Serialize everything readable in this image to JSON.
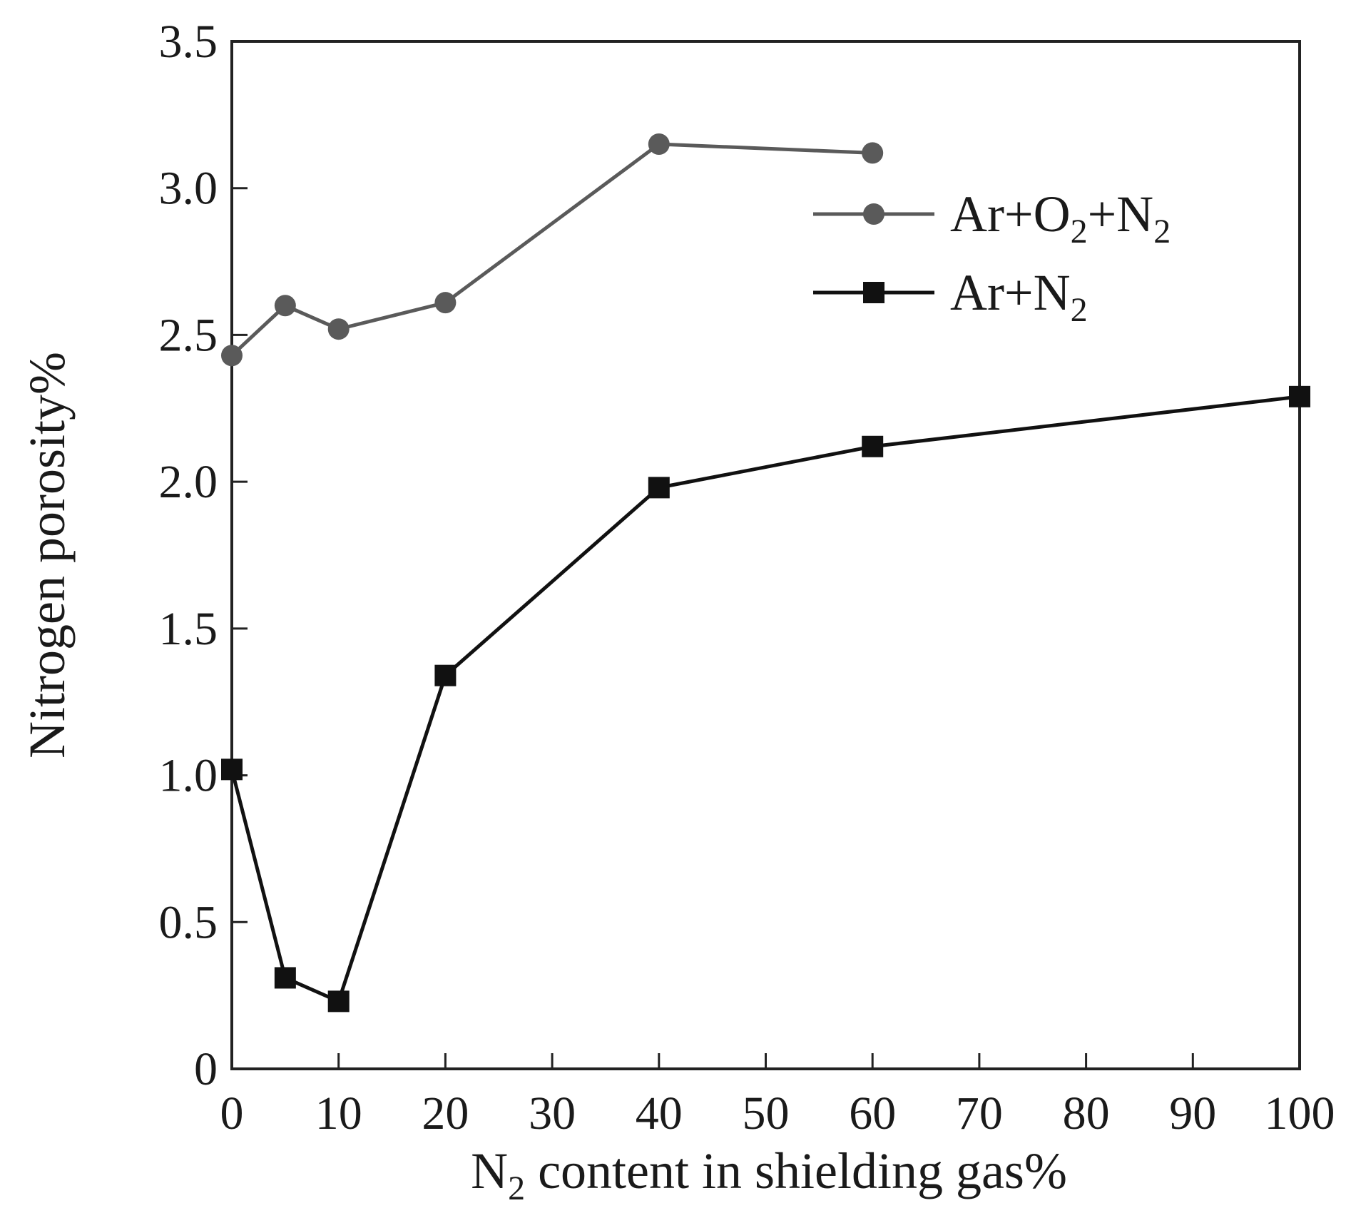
{
  "chart_data": {
    "type": "line",
    "xlabel": {
      "main": "N",
      "sub": "2",
      "rest": " content in shielding gas%"
    },
    "ylabel": "Nitrogen porosity%",
    "xlim": [
      0,
      100
    ],
    "ylim": [
      0,
      3.5
    ],
    "x_ticks": [
      0,
      10,
      20,
      30,
      40,
      50,
      60,
      70,
      80,
      90,
      100
    ],
    "x_tick_labels": [
      "0",
      "10",
      "20",
      "30",
      "40",
      "50",
      "60",
      "70",
      "80",
      "90",
      "100"
    ],
    "y_ticks": [
      0,
      0.5,
      1.0,
      1.5,
      2.0,
      2.5,
      3.0,
      3.5
    ],
    "y_tick_labels": [
      "0",
      "0.5",
      "1.0",
      "1.5",
      "2.0",
      "2.5",
      "3.0",
      "3.5"
    ],
    "grid": false,
    "legend_position": "top-right",
    "series": [
      {
        "name": "Ar+O2+N2",
        "legend_parts": [
          [
            "Ar+O",
            false
          ],
          [
            "2",
            true
          ],
          [
            "+N",
            false
          ],
          [
            "2",
            true
          ]
        ],
        "marker": "circle",
        "color": "#5a5a5a",
        "x": [
          0,
          5,
          10,
          20,
          40,
          60
        ],
        "y": [
          2.43,
          2.6,
          2.52,
          2.61,
          3.15,
          3.12
        ]
      },
      {
        "name": "Ar+N2",
        "legend_parts": [
          [
            "Ar+N",
            false
          ],
          [
            "2",
            true
          ]
        ],
        "marker": "square",
        "color": "#111111",
        "x": [
          0,
          5,
          10,
          20,
          40,
          60,
          100
        ],
        "y": [
          1.02,
          0.31,
          0.23,
          1.34,
          1.98,
          2.12,
          2.29
        ]
      }
    ]
  }
}
